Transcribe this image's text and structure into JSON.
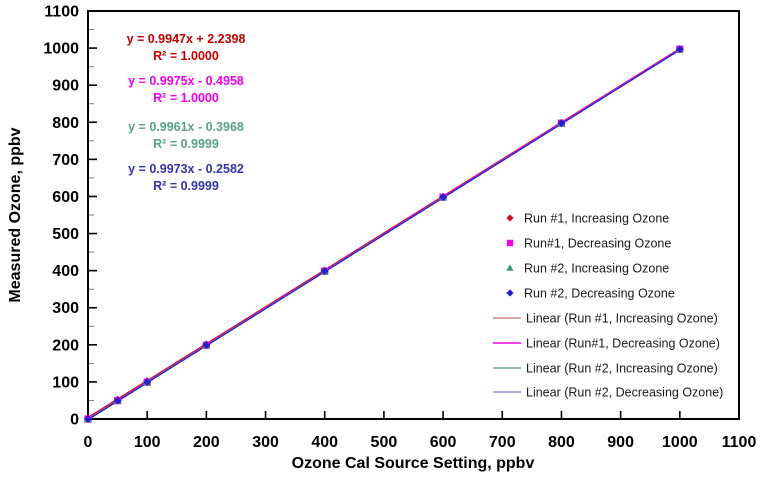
{
  "chart_data": {
    "type": "scatter",
    "title": "",
    "xlabel": "Ozone Cal Source Setting, ppbv",
    "ylabel": "Measured Ozone, ppbv",
    "xlim": [
      0,
      1100
    ],
    "ylim": [
      0,
      1100
    ],
    "x_ticks": [
      0,
      100,
      200,
      300,
      400,
      500,
      600,
      700,
      800,
      900,
      1000,
      1100
    ],
    "y_ticks": [
      0,
      100,
      200,
      300,
      400,
      500,
      600,
      700,
      800,
      900,
      1000,
      1100
    ],
    "y_minor_step": 50,
    "grid": false,
    "legend_position": "inside-right",
    "x": [
      0,
      50,
      100,
      200,
      400,
      600,
      800,
      1000
    ],
    "series": [
      {
        "name": "Run #1, Increasing Ozone",
        "linear_name": "Linear (Run #1, Increasing Ozone)",
        "marker": "diamond",
        "marker_color": "#CC1122",
        "line_color": "#CC8888",
        "equation": "y = 0.9947x + 2.2398",
        "r_squared": "R² = 1.0000",
        "equation_color": "#C00000",
        "fit": {
          "slope": 0.9947,
          "intercept": 2.2398
        },
        "values": [
          2.2,
          52.0,
          101.7,
          201.2,
          400.1,
          599.1,
          798.0,
          996.9
        ]
      },
      {
        "name": "Run#1, Decreasing Ozone",
        "linear_name": "Linear (Run#1, Decreasing Ozone)",
        "marker": "square",
        "marker_color": "#EE00EE",
        "line_color": "#EE00EE",
        "equation": "y = 0.9975x - 0.4958",
        "r_squared": "R² = 1.0000",
        "equation_color": "#EE00EE",
        "fit": {
          "slope": 0.9975,
          "intercept": -0.4958
        },
        "values": [
          -0.5,
          49.4,
          99.3,
          199.0,
          398.5,
          598.0,
          797.5,
          997.0
        ]
      },
      {
        "name": "Run #2, Increasing Ozone",
        "linear_name": "Linear (Run #2, Increasing Ozone)",
        "marker": "triangle",
        "marker_color": "#2E9973",
        "line_color": "#74A79B",
        "equation": "y = 0.9961x - 0.3968",
        "r_squared": "R² = 0.9999",
        "equation_color": "#57A189",
        "fit": {
          "slope": 0.9961,
          "intercept": -0.3968
        },
        "values": [
          -0.4,
          49.4,
          99.2,
          198.8,
          398.0,
          597.3,
          796.5,
          995.7
        ]
      },
      {
        "name": "Run #2, Decreasing Ozone",
        "linear_name": "Linear (Run #2, Decreasing Ozone)",
        "marker": "diamond",
        "marker_color": "#2222CC",
        "line_color": "#9090E0",
        "equation": "y = 0.9973x - 0.2582",
        "r_squared": "R² = 0.9999",
        "equation_color": "#3333AA",
        "fit": {
          "slope": 0.9973,
          "intercept": -0.2582
        },
        "values": [
          -0.3,
          49.6,
          99.5,
          199.2,
          398.7,
          598.1,
          797.6,
          997.0
        ]
      }
    ]
  }
}
